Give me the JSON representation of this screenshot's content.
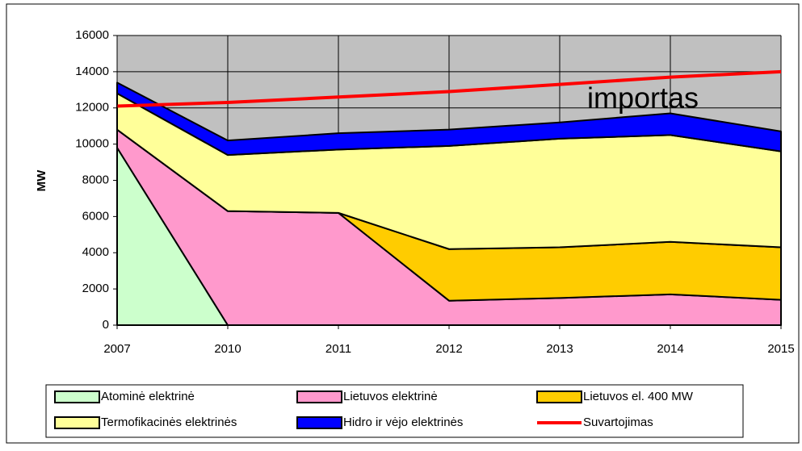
{
  "chart_data": {
    "type": "stacked-area",
    "y_label": "MW",
    "annotation": "importas",
    "plot_background": "#c0c0c0",
    "categories": [
      "2007",
      "2010",
      "2011",
      "2012",
      "2013",
      "2014",
      "2015"
    ],
    "ylim": [
      0,
      16000
    ],
    "yticks": [
      0,
      2000,
      4000,
      6000,
      8000,
      10000,
      12000,
      14000,
      16000
    ],
    "grid": true,
    "legend": "bottom",
    "series": [
      {
        "name": "Atominė elektrinė",
        "color": "#ccffcc",
        "values": [
          9800,
          0,
          0,
          0,
          0,
          0,
          0
        ]
      },
      {
        "name": "Lietuvos elektrinė",
        "color": "#ff99cc",
        "values": [
          1000,
          6300,
          6200,
          1350,
          1500,
          1700,
          1400
        ]
      },
      {
        "name": "Lietuvos el. 400 MW",
        "color": "#ffcc00",
        "values": [
          0,
          0,
          0,
          2850,
          2800,
          2900,
          2900
        ]
      },
      {
        "name": "Termofikacinės elektrinės",
        "color": "#ffff99",
        "values": [
          2000,
          3100,
          3500,
          5700,
          6000,
          5900,
          5300
        ]
      },
      {
        "name": "Hidro ir vėjo elektrinės",
        "color": "#0000ff",
        "values": [
          600,
          800,
          900,
          900,
          900,
          1200,
          1100
        ]
      },
      {
        "name": "Suvartojimas",
        "color": "#ff0000",
        "type": "line",
        "values": [
          12100,
          12300,
          12600,
          12900,
          13300,
          13700,
          14000
        ]
      }
    ]
  }
}
